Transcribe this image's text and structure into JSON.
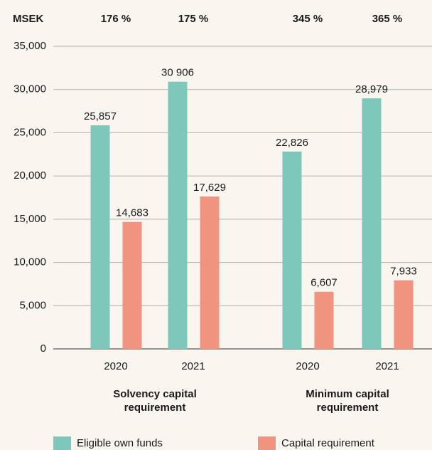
{
  "chart_data": {
    "type": "bar",
    "unit_label": "MSEK",
    "ratio_labels": [
      "176 %",
      "175 %",
      "345 %",
      "365 %"
    ],
    "categories": [
      "2020",
      "2021",
      "2020",
      "2021"
    ],
    "groups": [
      "Solvency capital requirement",
      "Minimum capital requirement"
    ],
    "series": [
      {
        "name": "Eligible own funds",
        "color": "#7dc8bb",
        "values": [
          25857,
          30906,
          22826,
          28979
        ],
        "value_labels": [
          "25,857",
          "30 906",
          "22,826",
          "28,979"
        ]
      },
      {
        "name": "Capital requirement",
        "color": "#f0937f",
        "values": [
          14683,
          17629,
          6607,
          7933
        ],
        "value_labels": [
          "14,683",
          "17,629",
          "6,607",
          "7,933"
        ]
      }
    ],
    "ylim": [
      0,
      35000
    ],
    "yticks": [
      0,
      {
        "value": 5000,
        "label": "5,000"
      },
      {
        "value": 10000,
        "label": "10,000"
      },
      {
        "value": 15000,
        "label": "15,000"
      },
      {
        "value": 20000,
        "label": "20,000"
      },
      {
        "value": 25000,
        "label": "25,000"
      },
      {
        "value": 30000,
        "label": "30,000"
      },
      {
        "value": 35000,
        "label": "35,000"
      }
    ],
    "grid": true
  }
}
